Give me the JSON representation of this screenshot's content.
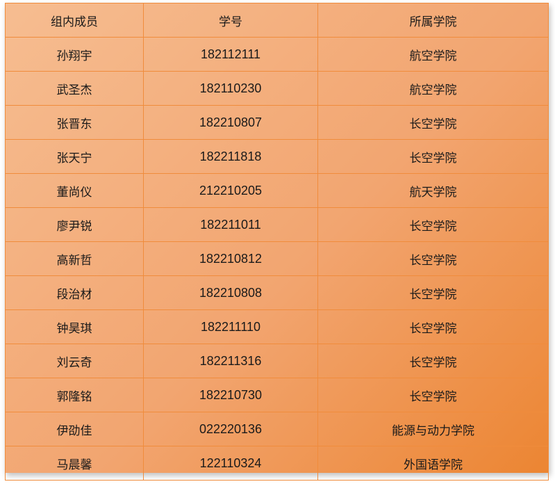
{
  "table": {
    "headers": [
      "组内成员",
      "学号",
      "所属学院"
    ],
    "rows": [
      [
        "孙翔宇",
        "182112111",
        "航空学院"
      ],
      [
        "武圣杰",
        "182110230",
        "航空学院"
      ],
      [
        "张晋东",
        "182210807",
        "长空学院"
      ],
      [
        "张天宁",
        "182211818",
        "长空学院"
      ],
      [
        "董尚仪",
        "212210205",
        "航天学院"
      ],
      [
        "廖尹锐",
        "182211011",
        "长空学院"
      ],
      [
        "高新哲",
        "182210812",
        "长空学院"
      ],
      [
        "段治材",
        "182210808",
        "长空学院"
      ],
      [
        "钟昊琪",
        "182211110",
        "长空学院"
      ],
      [
        "刘云奇",
        "182211316",
        "长空学院"
      ],
      [
        "郭隆铭",
        "182210730",
        "长空学院"
      ],
      [
        "伊劭佳",
        "022220136",
        "能源与动力学院"
      ],
      [
        "马晨馨",
        "122110324",
        "外国语学院"
      ]
    ]
  },
  "colors": {
    "fill_start": "#f6bd91",
    "fill_end": "#ec8532",
    "border": "#f08c3c"
  }
}
